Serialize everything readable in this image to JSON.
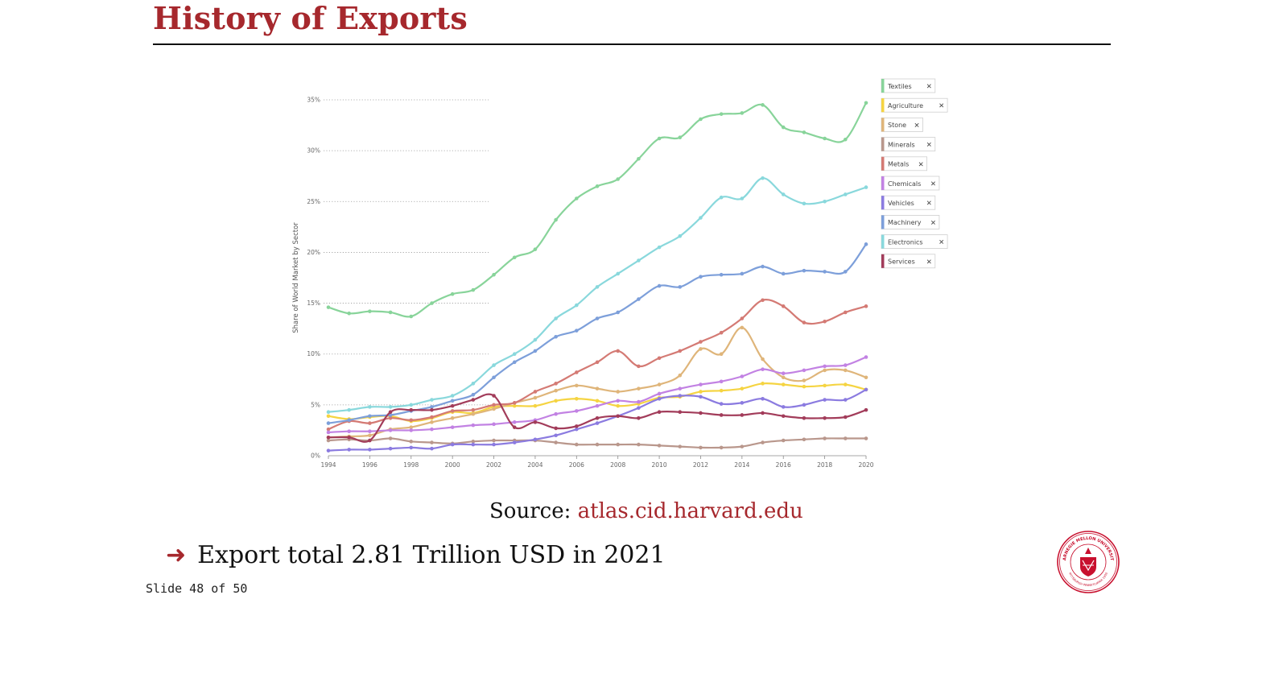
{
  "slide": {
    "title": "History of Exports",
    "source_label": "Source:",
    "source_link": "atlas.cid.harvard.edu",
    "bullet_text": "Export total 2.81 Trillion USD in 2021",
    "slide_number": "Slide 48 of 50",
    "seal_text": "CARNEGIE MELLON UNIVERSITY",
    "seal_bottom_text": "PITTSBURGH PENNSYLVANIA 1900"
  },
  "colors": {
    "accent": "#a6282d"
  },
  "chart_data": {
    "type": "line",
    "ylabel": "Share of World Market by Sector",
    "xlabel": "",
    "ylim": [
      0,
      35
    ],
    "xlim": [
      1994,
      2020
    ],
    "yticks": [
      "0%",
      "5%",
      "10%",
      "15%",
      "20%",
      "25%",
      "30%",
      "35%"
    ],
    "xticks": [
      "1994",
      "1996",
      "1998",
      "2000",
      "2002",
      "2004",
      "2006",
      "2008",
      "2010",
      "2012",
      "2014",
      "2016",
      "2018",
      "2020"
    ],
    "legend_position": "top-right",
    "legend_close_glyph": "✕",
    "x": [
      1994,
      1995,
      1996,
      1997,
      1998,
      1999,
      2000,
      2001,
      2002,
      2003,
      2004,
      2005,
      2006,
      2007,
      2008,
      2009,
      2010,
      2011,
      2012,
      2013,
      2014,
      2015,
      2016,
      2017,
      2018,
      2019,
      2020
    ],
    "series": [
      {
        "name": "Textiles",
        "color": "#88d49a",
        "values": [
          14.6,
          14.0,
          14.2,
          14.1,
          13.7,
          15.0,
          15.9,
          16.3,
          17.8,
          19.5,
          20.3,
          23.2,
          25.3,
          26.5,
          27.2,
          29.2,
          31.2,
          31.3,
          33.1,
          33.6,
          33.7,
          34.5,
          32.3,
          31.8,
          31.2,
          31.1,
          34.7
        ]
      },
      {
        "name": "Agriculture",
        "color": "#f5d442",
        "values": [
          3.9,
          3.6,
          3.8,
          3.9,
          3.4,
          3.7,
          4.3,
          4.2,
          4.8,
          4.9,
          4.9,
          5.4,
          5.6,
          5.4,
          4.9,
          5.1,
          5.7,
          5.8,
          6.3,
          6.4,
          6.6,
          7.1,
          7.0,
          6.8,
          6.9,
          7.0,
          6.5
        ]
      },
      {
        "name": "Stone",
        "color": "#dfb57a",
        "values": [
          1.8,
          1.9,
          2.0,
          2.6,
          2.8,
          3.3,
          3.7,
          4.1,
          4.6,
          5.2,
          5.7,
          6.4,
          6.9,
          6.6,
          6.3,
          6.6,
          7.0,
          7.9,
          10.5,
          10.0,
          12.6,
          9.5,
          7.7,
          7.4,
          8.4,
          8.4,
          7.7
        ]
      },
      {
        "name": "Minerals",
        "color": "#b9978c",
        "values": [
          1.5,
          1.6,
          1.5,
          1.7,
          1.4,
          1.3,
          1.2,
          1.4,
          1.5,
          1.5,
          1.5,
          1.3,
          1.1,
          1.1,
          1.1,
          1.1,
          1.0,
          0.9,
          0.8,
          0.8,
          0.9,
          1.3,
          1.5,
          1.6,
          1.7,
          1.7,
          1.7
        ]
      },
      {
        "name": "Metals",
        "color": "#d47a74",
        "values": [
          2.6,
          3.4,
          3.2,
          3.7,
          3.5,
          3.8,
          4.4,
          4.5,
          5.0,
          5.2,
          6.3,
          7.1,
          8.2,
          9.2,
          10.3,
          8.8,
          9.6,
          10.3,
          11.2,
          12.1,
          13.5,
          15.3,
          14.7,
          13.1,
          13.2,
          14.1,
          14.7
        ]
      },
      {
        "name": "Chemicals",
        "color": "#c282e3",
        "values": [
          2.3,
          2.4,
          2.4,
          2.5,
          2.5,
          2.6,
          2.8,
          3.0,
          3.1,
          3.3,
          3.5,
          4.1,
          4.4,
          4.9,
          5.4,
          5.3,
          6.1,
          6.6,
          7.0,
          7.3,
          7.8,
          8.5,
          8.1,
          8.4,
          8.8,
          8.9,
          9.7
        ]
      },
      {
        "name": "Vehicles",
        "color": "#8b7be0",
        "values": [
          0.5,
          0.6,
          0.6,
          0.7,
          0.8,
          0.7,
          1.1,
          1.1,
          1.1,
          1.3,
          1.6,
          2.0,
          2.6,
          3.2,
          3.9,
          4.7,
          5.6,
          5.9,
          5.8,
          5.1,
          5.2,
          5.6,
          4.8,
          5.0,
          5.5,
          5.5,
          6.5
        ]
      },
      {
        "name": "Machinery",
        "color": "#7d9fda",
        "values": [
          3.2,
          3.5,
          3.9,
          4.0,
          4.4,
          4.8,
          5.4,
          6.0,
          7.7,
          9.2,
          10.3,
          11.7,
          12.3,
          13.5,
          14.1,
          15.4,
          16.7,
          16.6,
          17.6,
          17.8,
          17.9,
          18.6,
          17.9,
          18.2,
          18.1,
          18.1,
          20.8
        ]
      },
      {
        "name": "Electronics",
        "color": "#89d8dc",
        "values": [
          4.3,
          4.5,
          4.8,
          4.8,
          5.0,
          5.5,
          5.9,
          7.1,
          8.9,
          10.0,
          11.4,
          13.5,
          14.8,
          16.6,
          17.9,
          19.2,
          20.5,
          21.6,
          23.4,
          25.4,
          25.3,
          27.3,
          25.7,
          24.8,
          25.0,
          25.7,
          26.4
        ]
      },
      {
        "name": "Services",
        "color": "#a23c5a",
        "values": [
          1.8,
          1.8,
          1.5,
          4.3,
          4.5,
          4.5,
          4.9,
          5.5,
          5.9,
          2.8,
          3.3,
          2.7,
          2.9,
          3.7,
          3.9,
          3.7,
          4.3,
          4.3,
          4.2,
          4.0,
          4.0,
          4.2,
          3.9,
          3.7,
          3.7,
          3.8,
          4.5
        ]
      }
    ]
  }
}
